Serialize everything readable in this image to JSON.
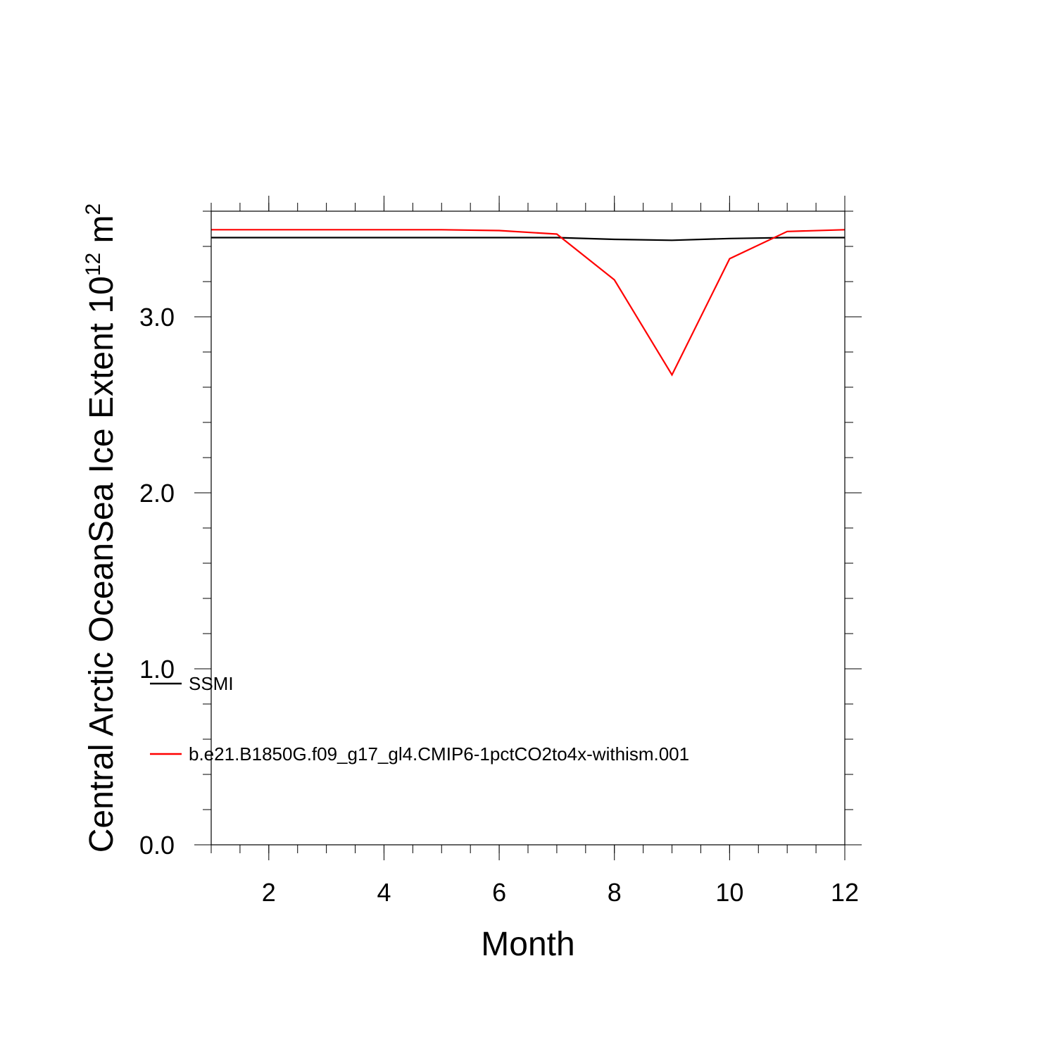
{
  "chart_data": {
    "type": "line",
    "title": "",
    "xlabel": "Month",
    "ylabel_main": "Central Arctic OceanSea Ice Extent 10",
    "ylabel_exp": "12",
    "ylabel_unit": " m",
    "ylabel_unit_exp": "2",
    "xlim": [
      1,
      12
    ],
    "ylim": [
      0,
      3.6
    ],
    "x_ticks": [
      2,
      4,
      6,
      8,
      10,
      12
    ],
    "x_tick_labels": [
      "2",
      "4",
      "6",
      "8",
      "10",
      "12"
    ],
    "y_ticks": [
      0,
      1,
      2,
      3
    ],
    "y_tick_labels": [
      "0.0",
      "1.0",
      "2.0",
      "3.0"
    ],
    "grid": false,
    "legend_position": "lower-left",
    "x": [
      1,
      2,
      3,
      4,
      5,
      6,
      7,
      8,
      9,
      10,
      11,
      12
    ],
    "series": [
      {
        "name": "SSMI",
        "color": "#000000",
        "values": [
          3.45,
          3.45,
          3.45,
          3.45,
          3.45,
          3.45,
          3.45,
          3.44,
          3.435,
          3.445,
          3.45,
          3.45
        ]
      },
      {
        "name": "b.e21.B1850G.f09_g17_gl4.CMIP6-1pctCO2to4x-withism.001",
        "color": "#ff0000",
        "values": [
          3.495,
          3.495,
          3.495,
          3.495,
          3.495,
          3.49,
          3.47,
          3.21,
          2.67,
          3.33,
          3.485,
          3.495
        ]
      }
    ]
  }
}
